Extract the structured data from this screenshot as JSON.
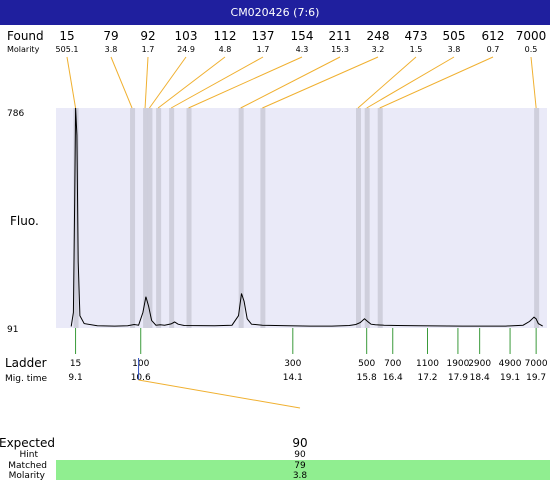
{
  "title": "CM020426 (7:6)",
  "chart_data": {
    "type": "line",
    "title": "CM020426 (7:6)",
    "ylabel": "Fluo.",
    "ylim": [
      91,
      786
    ],
    "xlim": [
      9.1,
      19.7
    ],
    "found_label": "Found",
    "molarity_label": "Molarity",
    "found": [
      {
        "size": "15",
        "molarity": "505.1"
      },
      {
        "size": "79",
        "molarity": "3.8"
      },
      {
        "size": "92",
        "molarity": "1.7"
      },
      {
        "size": "103",
        "molarity": "24.9"
      },
      {
        "size": "112",
        "molarity": "4.8"
      },
      {
        "size": "137",
        "molarity": "1.7"
      },
      {
        "size": "154",
        "molarity": "4.3"
      },
      {
        "size": "211",
        "molarity": "15.3"
      },
      {
        "size": "248",
        "molarity": "3.2"
      },
      {
        "size": "473",
        "molarity": "1.5"
      },
      {
        "size": "505",
        "molarity": "3.8"
      },
      {
        "size": "612",
        "molarity": "0.7"
      },
      {
        "size": "7000",
        "molarity": "0.5"
      }
    ],
    "found_peak_times": [
      9.1,
      10.4,
      10.7,
      10.8,
      11.0,
      11.3,
      11.7,
      12.9,
      13.4,
      15.6,
      15.8,
      16.1,
      19.7
    ],
    "ladder_label": "Ladder",
    "migtime_label": "Mig. time",
    "ladder": [
      {
        "size": "15",
        "time": "9.1",
        "t": 9.1
      },
      {
        "size": "100",
        "time": "10.6",
        "t": 10.6
      },
      {
        "size": "300",
        "time": "14.1",
        "t": 14.1
      },
      {
        "size": "500",
        "time": "15.8",
        "t": 15.8
      },
      {
        "size": "700",
        "time": "16.4",
        "t": 16.4
      },
      {
        "size": "1100",
        "time": "17.2",
        "t": 17.2
      },
      {
        "size": "1900",
        "time": "17.9",
        "t": 17.9
      },
      {
        "size": "2900",
        "time": "18.4",
        "t": 18.4
      },
      {
        "size": "4900",
        "time": "19.1",
        "t": 19.1
      },
      {
        "size": "7000",
        "time": "19.7",
        "t": 19.7
      }
    ],
    "trace": [
      [
        9.0,
        96
      ],
      [
        9.05,
        140
      ],
      [
        9.08,
        500
      ],
      [
        9.1,
        786
      ],
      [
        9.13,
        700
      ],
      [
        9.16,
        300
      ],
      [
        9.2,
        130
      ],
      [
        9.3,
        105
      ],
      [
        9.6,
        98
      ],
      [
        10.0,
        97
      ],
      [
        10.3,
        98
      ],
      [
        10.45,
        102
      ],
      [
        10.55,
        100
      ],
      [
        10.65,
        140
      ],
      [
        10.72,
        190
      ],
      [
        10.78,
        160
      ],
      [
        10.85,
        115
      ],
      [
        10.95,
        100
      ],
      [
        11.05,
        101
      ],
      [
        11.15,
        100
      ],
      [
        11.3,
        104
      ],
      [
        11.38,
        110
      ],
      [
        11.46,
        103
      ],
      [
        11.6,
        99
      ],
      [
        12.3,
        98
      ],
      [
        12.7,
        100
      ],
      [
        12.85,
        130
      ],
      [
        12.92,
        200
      ],
      [
        12.98,
        175
      ],
      [
        13.05,
        120
      ],
      [
        13.15,
        103
      ],
      [
        13.4,
        100
      ],
      [
        14.0,
        98
      ],
      [
        14.5,
        97
      ],
      [
        15.0,
        97
      ],
      [
        15.4,
        99
      ],
      [
        15.55,
        102
      ],
      [
        15.65,
        108
      ],
      [
        15.75,
        120
      ],
      [
        15.82,
        112
      ],
      [
        15.9,
        103
      ],
      [
        16.0,
        101
      ],
      [
        16.2,
        100
      ],
      [
        16.5,
        99
      ],
      [
        17.0,
        98
      ],
      [
        18.0,
        97
      ],
      [
        19.0,
        97
      ],
      [
        19.4,
        100
      ],
      [
        19.55,
        112
      ],
      [
        19.65,
        125
      ],
      [
        19.7,
        120
      ],
      [
        19.75,
        105
      ],
      [
        19.85,
        97
      ]
    ],
    "expected": {
      "expected_label": "Expected",
      "expected_value": "90",
      "hint_label": "Hint",
      "hint_value": "90",
      "matched_label": "Matched",
      "matched_value": "79",
      "molarity_label": "Molarity",
      "molarity_value": "3.8",
      "highlight_color": "#90ee90"
    }
  }
}
